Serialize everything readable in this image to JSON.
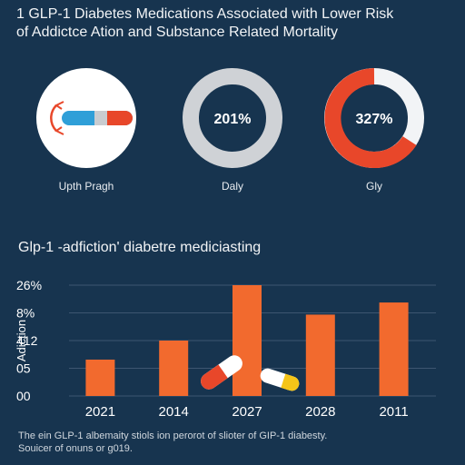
{
  "header": {
    "title_line1": "1 GLP-1 Diabetes Medications Associated with Lower Risk",
    "title_line2": "of  Addictce Ation and Substance Related Mortality"
  },
  "panels": {
    "icon_caption": "Upth Pragh",
    "donut1": {
      "label": "201%",
      "caption": "Daly"
    },
    "donut2": {
      "label": "327%",
      "caption": "Gly"
    }
  },
  "section": {
    "title": "Glp-1 -adfiction' diabetre mediciasting"
  },
  "chart_data": {
    "type": "bar",
    "title": "",
    "ylabel": "Adiction",
    "xlabel": "",
    "categories": [
      "2021",
      "2014",
      "2027",
      "2028",
      "2011"
    ],
    "values": [
      1.05,
      1.6,
      3.2,
      2.35,
      2.7
    ],
    "y_tick_labels": [
      "00",
      "05",
      "412",
      "8%",
      "26%"
    ],
    "ylim": [
      0,
      3.2
    ],
    "grid": true,
    "bar_color": "#f26a2e"
  },
  "footer": {
    "line1": "The ein GLP-1 albemaity stiols ion perorot of slioter of GIP-1 diabesty.",
    "line2": "Souicer of onuns  or g019."
  },
  "colors": {
    "background": "#17344f",
    "accent_orange": "#f26a2e",
    "donut_red": "#e8472a",
    "donut_gray": "#cfd2d6",
    "pill_blue": "#2f9fd8"
  },
  "icons": [
    "pill-icon",
    "pill-pair-icon"
  ]
}
